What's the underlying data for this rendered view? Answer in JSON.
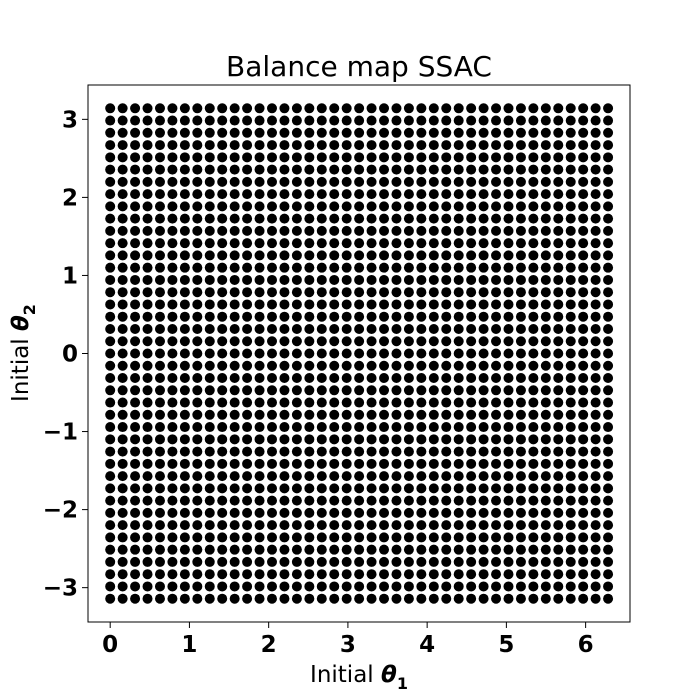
{
  "chart_data": {
    "type": "scatter",
    "title": "Balance map SSAC",
    "xlabel": {
      "prefix": "Initial ",
      "symbol": "θ",
      "subscript": "1"
    },
    "ylabel": {
      "prefix": "Initial ",
      "symbol": "θ",
      "subscript": "2"
    },
    "xlim": [
      -0.28,
      6.56
    ],
    "ylim": [
      -3.44,
      3.44
    ],
    "xticks": [
      0,
      1,
      2,
      3,
      4,
      5,
      6
    ],
    "xtick_labels": [
      "0",
      "1",
      "2",
      "3",
      "4",
      "5",
      "6"
    ],
    "yticks": [
      3,
      2,
      1,
      0,
      -1,
      -2,
      -3
    ],
    "ytick_labels": [
      "3",
      "2",
      "1",
      "0",
      "−1",
      "−2",
      "−3"
    ],
    "grid": false,
    "legend": "none",
    "marker_color": "#000000",
    "series": [
      {
        "x_range": {
          "start": 0.0,
          "stop": 6.2832,
          "num": 41
        },
        "y_range": {
          "start": -3.1416,
          "stop": 3.1416,
          "num": 41
        }
      }
    ]
  }
}
